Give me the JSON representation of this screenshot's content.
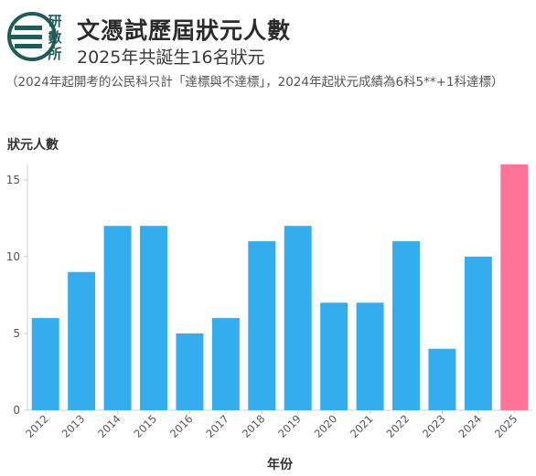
{
  "logo": {
    "chars": [
      "研",
      "數",
      "所"
    ],
    "color": "#1f5c59"
  },
  "header": {
    "title": "文憑試歷屆狀元人數",
    "subtitle": "2025年共誕生16名狀元"
  },
  "note": "（2024年起開考的公民科只計「達標與不達標」，2024年起狀元成績為6科5**+1科達標）",
  "chart_data": {
    "type": "bar",
    "title": "",
    "xlabel": "年份",
    "ylabel": "狀元人數",
    "categories": [
      "2012",
      "2013",
      "2014",
      "2015",
      "2016",
      "2017",
      "2018",
      "2019",
      "2020",
      "2021",
      "2022",
      "2023",
      "2024",
      "2025"
    ],
    "values": [
      6,
      9,
      12,
      12,
      5,
      6,
      11,
      12,
      7,
      7,
      11,
      4,
      10,
      16
    ],
    "ylim": [
      0,
      16
    ],
    "yticks": [
      0,
      5,
      10,
      15
    ],
    "grid": false,
    "colors": {
      "default": "#33aded",
      "highlight": "#ff7397",
      "highlight_category": "2025"
    }
  }
}
